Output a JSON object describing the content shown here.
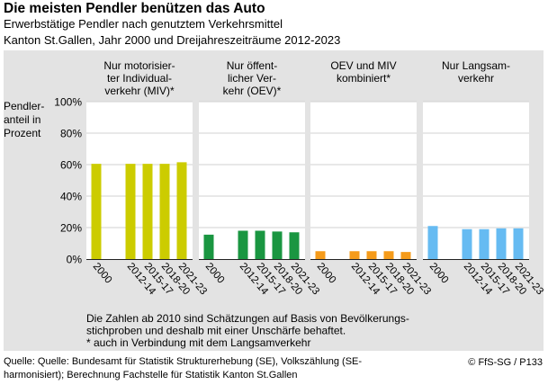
{
  "title": "Die meisten Pendler benützen das Auto",
  "subtitle": [
    "Erwerbstätige Pendler nach genutztem Verkehrsmittel",
    "Kanton St.Gallen, Jahr 2000 und Dreijahreszeiträume 2012-2023"
  ],
  "note": [
    "Die Zahlen ab 2010 sind Schätzungen auf Basis von Bevölkerungs-",
    "stichproben und deshalb mit einer Unschärfe behaftet.",
    "* auch in Verbindung mit dem Langsamverkehr"
  ],
  "source": [
    "Quelle: Quelle: Bundesamt für Statistik Strukturerhebung (SE), Volkszählung (SE-",
    "harmonisiert); Berechnung Fachstelle für Statistik Kanton St.Gallen"
  ],
  "copyright": "© FfS-SG / P133",
  "chart_data": {
    "type": "bar",
    "ylabel": [
      "Pendler-",
      "anteil in",
      "Prozent"
    ],
    "ylim": [
      0,
      100
    ],
    "yticks": [
      "0%",
      "20%",
      "40%",
      "60%",
      "80%",
      "100%"
    ],
    "categories": [
      "2000",
      "",
      "2012-14",
      "2015-17",
      "2018-20",
      "2021-23"
    ],
    "series": [
      {
        "name": [
          "Nur motorisier-",
          "ter Individual-",
          "verkehr (MIV)*"
        ],
        "color": "#cccc00",
        "values": [
          60.5,
          null,
          60.5,
          60.5,
          60.5,
          61.5
        ]
      },
      {
        "name": [
          "Nur öffent-",
          "licher Ver-",
          "kehr (OEV)*"
        ],
        "color": "#1a9641",
        "values": [
          15.5,
          null,
          18,
          18,
          17.5,
          17
        ]
      },
      {
        "name": [
          "OEV und MIV",
          "kombiniert*"
        ],
        "color": "#f59b1a",
        "values": [
          5,
          null,
          5,
          5,
          5,
          4.5
        ]
      },
      {
        "name": [
          "Nur Langsam-",
          "verkehr"
        ],
        "color": "#66bbf2",
        "values": [
          21,
          null,
          19,
          19,
          19.5,
          19.5
        ]
      }
    ]
  }
}
